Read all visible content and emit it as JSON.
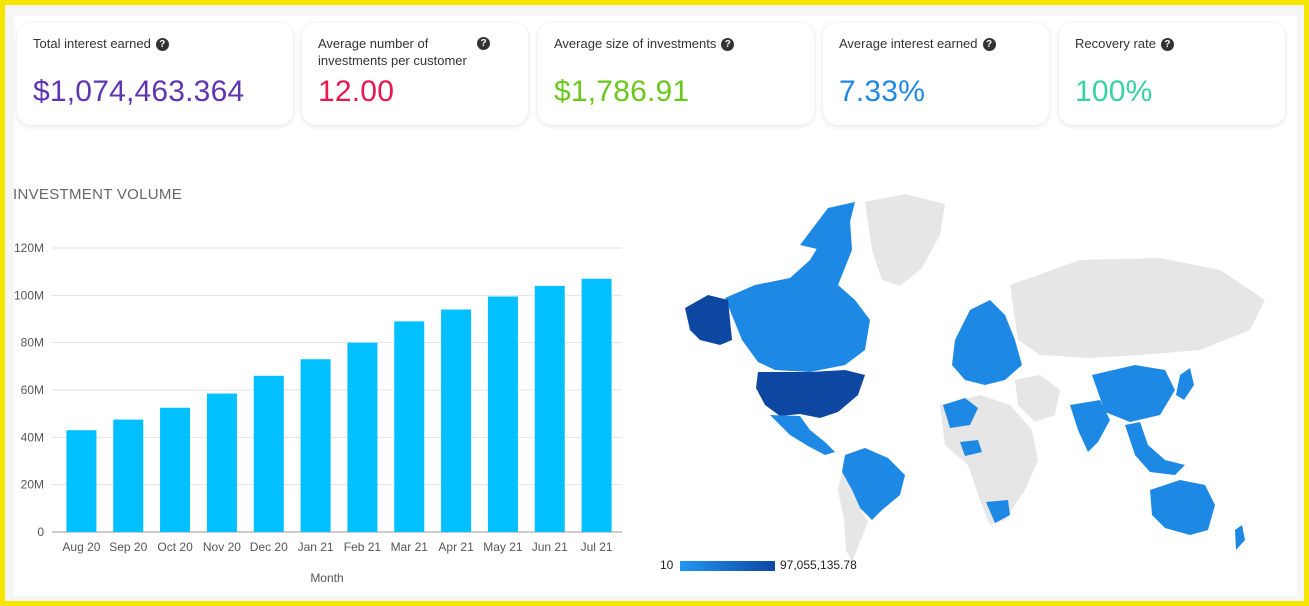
{
  "kpis": [
    {
      "label": "Total interest earned",
      "value": "$1,074,463.364",
      "color": "#5e35b1"
    },
    {
      "label": "Average number of investments per customer",
      "value": "12.00",
      "color": "#e8174d"
    },
    {
      "label": "Average size of investments",
      "value": "$1,786.91",
      "color": "#6cc71d"
    },
    {
      "label": "Average interest earned",
      "value": "7.33%",
      "color": "#1e88e5"
    },
    {
      "label": "Recovery rate",
      "value": "100%",
      "color": "#38d0a7"
    }
  ],
  "help_glyph": "?",
  "section_title": "INVESTMENT VOLUME",
  "chart_data": {
    "type": "bar",
    "title": "INVESTMENT VOLUME",
    "xlabel": "Month",
    "ylabel": "",
    "categories": [
      "Aug 20",
      "Sep 20",
      "Oct 20",
      "Nov 20",
      "Dec 20",
      "Jan 21",
      "Feb 21",
      "Mar 21",
      "Apr 21",
      "May 21",
      "Jun 21",
      "Jul 21"
    ],
    "values": [
      43,
      47.5,
      52.5,
      58.5,
      66,
      73,
      80,
      89,
      94,
      99.5,
      104,
      107
    ],
    "value_unit": "M",
    "ylim": [
      0,
      120
    ],
    "yticks": [
      0,
      20,
      40,
      60,
      80,
      100,
      120
    ],
    "ytick_labels": [
      "0",
      "20M",
      "40M",
      "60M",
      "80M",
      "100M",
      "120M"
    ],
    "bar_color": "#00c0ff",
    "grid": true
  },
  "map_legend": {
    "min_label": "10",
    "max_label": "97,055,135.78",
    "low_color": "#2196f3",
    "high_color": "#0d47a1",
    "none_color": "#e6e6e6"
  }
}
